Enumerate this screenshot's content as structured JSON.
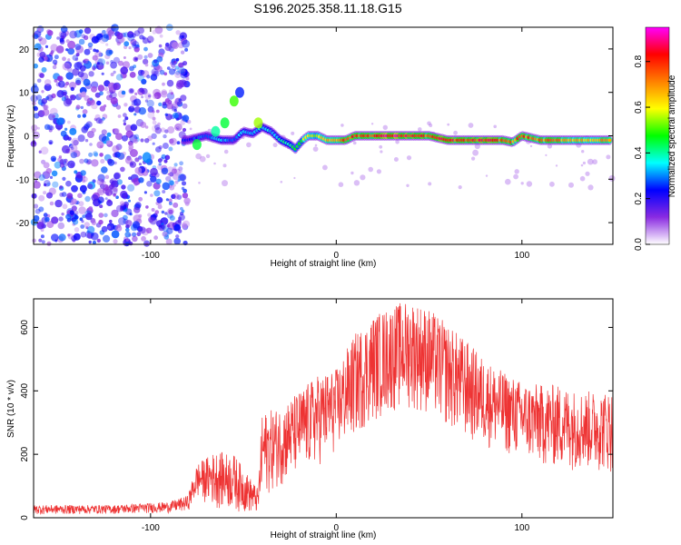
{
  "title": "S196.2025.358.11.18.G15",
  "chart_data": [
    {
      "type": "heatmap",
      "title": "S196.2025.358.11.18.G15",
      "xlabel": "Height of straight line (km)",
      "ylabel": "Frequency (Hz)",
      "xlim": [
        -163,
        149
      ],
      "ylim": [
        -25,
        25
      ],
      "xticks": [
        -100,
        0,
        100
      ],
      "yticks": [
        -20,
        -10,
        0,
        10,
        20
      ],
      "colorbar": {
        "label": "Normalized spectral amplitude",
        "range": [
          0.0,
          0.95
        ],
        "ticks": [
          0.0,
          0.2,
          0.4,
          0.6,
          0.8
        ],
        "tick_labels": [
          "0.0",
          "0.2",
          "0.4",
          "0.6",
          "0.8"
        ],
        "colors": [
          "#ffffff",
          "#8a2be2",
          "#0000ff",
          "#00ffff",
          "#00ff00",
          "#ffff00",
          "#ff8000",
          "#ff0000",
          "#ff00ff"
        ]
      },
      "noise_region_x": [
        -163,
        -80
      ],
      "ridge": {
        "x": [
          -80,
          -70,
          -62,
          -55,
          -50,
          -45,
          -40,
          -35,
          -30,
          -25,
          -22,
          -20,
          -18,
          -15,
          -10,
          -5,
          0,
          5,
          10,
          20,
          30,
          40,
          50,
          60,
          70,
          80,
          90,
          95,
          100,
          110,
          120,
          130,
          140,
          149
        ],
        "frequency": [
          -1,
          0,
          -1,
          -1,
          1,
          0.5,
          2,
          1,
          -1,
          -2,
          -3,
          -2,
          -1,
          0,
          0,
          -1,
          -1,
          -1,
          0,
          0,
          0,
          0,
          0,
          -1,
          -1,
          -1,
          -1,
          -1.5,
          0,
          -1,
          -1,
          -1,
          -1,
          -1
        ],
        "amplitude": [
          0.25,
          0.3,
          0.35,
          0.3,
          0.35,
          0.3,
          0.4,
          0.35,
          0.4,
          0.45,
          0.5,
          0.5,
          0.55,
          0.6,
          0.6,
          0.7,
          0.75,
          0.8,
          0.8,
          0.85,
          0.9,
          0.85,
          0.8,
          0.85,
          0.8,
          0.85,
          0.8,
          0.75,
          0.8,
          0.75,
          0.75,
          0.7,
          0.7,
          0.7
        ]
      }
    },
    {
      "type": "line",
      "xlabel": "Height of straight line (km)",
      "ylabel": "SNR (10 * v/v)",
      "xlim": [
        -163,
        149
      ],
      "ylim": [
        0,
        690
      ],
      "xticks": [
        -100,
        0,
        100
      ],
      "yticks": [
        0,
        200,
        400,
        600
      ],
      "series": [
        {
          "name": "SNR",
          "color": "#ee3333",
          "envelope_x": [
            -163,
            -120,
            -90,
            -80,
            -75,
            -65,
            -55,
            -42,
            -40,
            -30,
            -20,
            -10,
            0,
            10,
            20,
            30,
            40,
            50,
            60,
            70,
            80,
            90,
            100,
            110,
            120,
            130,
            140,
            149
          ],
          "envelope_low": [
            10,
            12,
            15,
            20,
            60,
            30,
            20,
            10,
            60,
            100,
            130,
            160,
            200,
            250,
            300,
            330,
            340,
            320,
            280,
            240,
            220,
            200,
            180,
            160,
            150,
            150,
            145,
            140
          ],
          "envelope_high": [
            40,
            40,
            50,
            70,
            170,
            210,
            200,
            90,
            330,
            350,
            400,
            450,
            470,
            580,
            640,
            670,
            690,
            660,
            610,
            560,
            500,
            460,
            430,
            420,
            420,
            400,
            400,
            400
          ]
        }
      ]
    }
  ]
}
